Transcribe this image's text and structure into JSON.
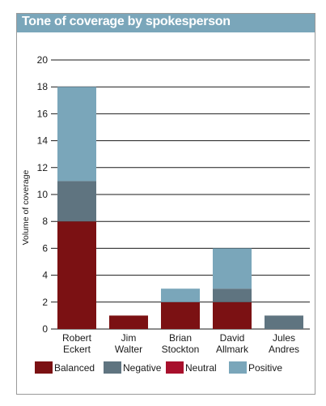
{
  "chart_data": {
    "type": "bar",
    "stacked": true,
    "title": "Tone of coverage by spokesperson",
    "ylabel": "Volume of coverage",
    "xlabel": "",
    "ylim": [
      0,
      20
    ],
    "yticks": [
      0,
      2,
      4,
      6,
      8,
      10,
      12,
      14,
      16,
      18,
      20
    ],
    "categories": [
      [
        "Robert",
        "Eckert"
      ],
      [
        "Jim",
        "Walter"
      ],
      [
        "Brian",
        "Stockton"
      ],
      [
        "David",
        "Allmark"
      ],
      [
        "Jules",
        "Andres"
      ]
    ],
    "series": [
      {
        "name": "Balanced",
        "color": "#7b1113",
        "values": [
          8,
          1,
          2,
          2,
          0
        ]
      },
      {
        "name": "Negative",
        "color": "#5f7480",
        "values": [
          3,
          0,
          0,
          1,
          1
        ]
      },
      {
        "name": "Neutral",
        "color": "#a8102c",
        "values": [
          0,
          0,
          0,
          0,
          0
        ]
      },
      {
        "name": "Positive",
        "color": "#7aa6ba",
        "values": [
          7,
          0,
          1,
          3,
          0
        ]
      }
    ],
    "grid": "horizontal",
    "legend_position": "bottom"
  }
}
